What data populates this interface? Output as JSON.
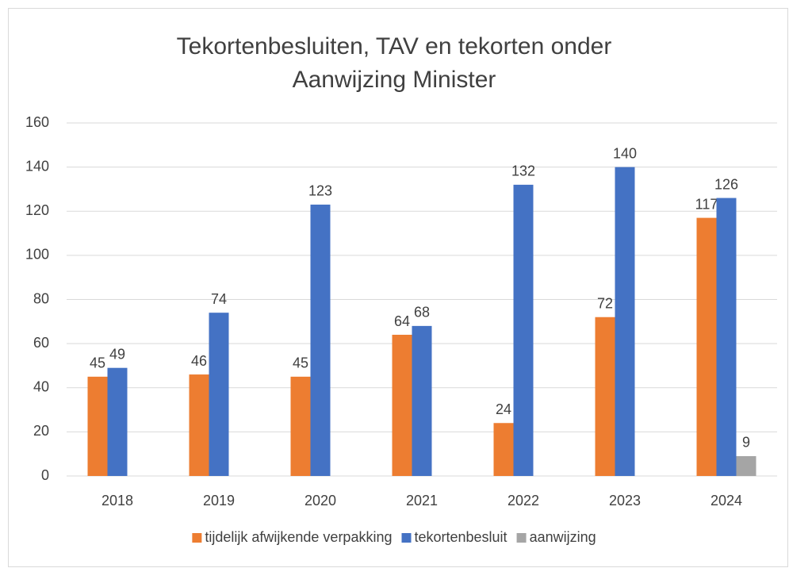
{
  "chart_data": {
    "type": "bar",
    "title": [
      "Tekortenbesluiten, TAV en tekorten onder",
      "Aanwijzing Minister"
    ],
    "categories": [
      "2018",
      "2019",
      "2020",
      "2021",
      "2022",
      "2023",
      "2024"
    ],
    "series": [
      {
        "name": "tijdelijk afwijkende verpakking",
        "color": "#ed7d31",
        "values": [
          45,
          46,
          45,
          64,
          24,
          72,
          117
        ]
      },
      {
        "name": "tekortenbesluit",
        "color": "#4472c4",
        "values": [
          49,
          74,
          123,
          68,
          132,
          140,
          126
        ]
      },
      {
        "name": "aanwijzing",
        "color": "#a5a5a5",
        "values": [
          null,
          null,
          null,
          null,
          null,
          null,
          9
        ]
      }
    ],
    "ylim": [
      0,
      160
    ],
    "yticks": [
      0,
      20,
      40,
      60,
      80,
      100,
      120,
      140,
      160
    ],
    "grid": true,
    "legend": "bottom"
  }
}
